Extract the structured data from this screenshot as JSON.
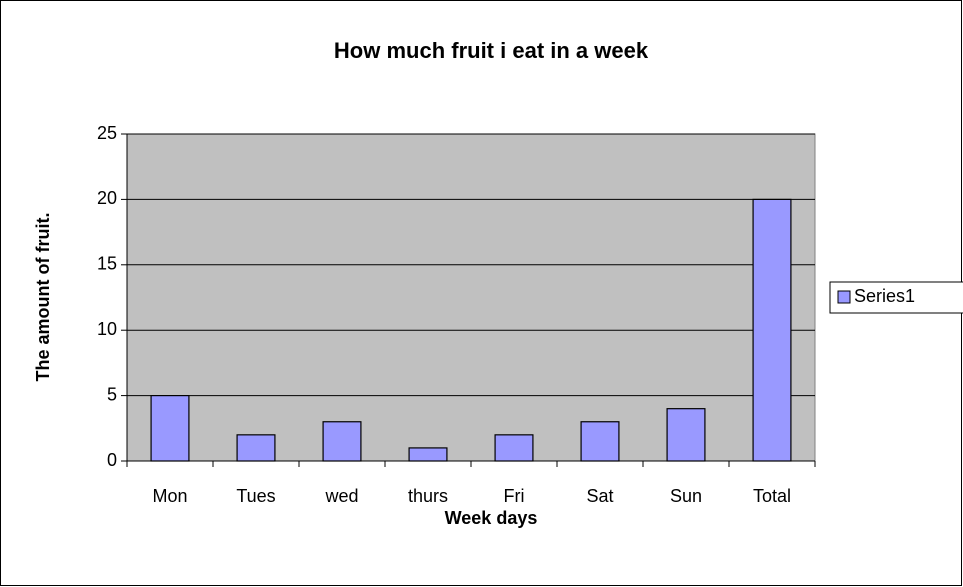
{
  "chart_data": {
    "type": "bar",
    "title": "How much fruit i eat in a week",
    "x_label": "Week days",
    "y_label": "The amount of fruit.",
    "categories": [
      "Mon",
      "Tues",
      "wed",
      "thurs",
      "Fri",
      "Sat",
      "Sun",
      "Total"
    ],
    "series": [
      {
        "name": "Series1",
        "color": "#9999ff",
        "values": [
          5,
          2,
          3,
          1,
          2,
          3,
          4,
          20
        ]
      }
    ],
    "ylim": [
      0,
      25
    ],
    "yticks": [
      0,
      5,
      10,
      15,
      20,
      25
    ],
    "grid": true,
    "legend": "right",
    "plot_background": "#c0c0c0"
  }
}
